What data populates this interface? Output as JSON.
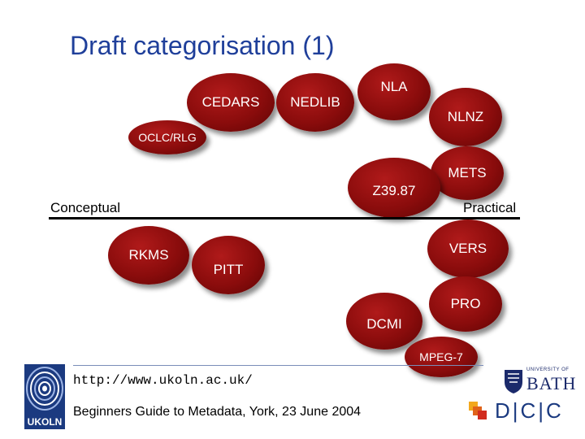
{
  "slide": {
    "title": "Draft categorisation (1)"
  },
  "bubbles": [
    {
      "name": "CEDARS"
    },
    {
      "name": "NEDLIB"
    },
    {
      "name": "NLA"
    },
    {
      "name": "NLNZ"
    },
    {
      "name": "OCLC/RLG"
    },
    {
      "name": "METS"
    },
    {
      "name": "Z39.87"
    },
    {
      "name": "RKMS"
    },
    {
      "name": "VERS"
    },
    {
      "name": "PITT"
    },
    {
      "name": "PRO"
    },
    {
      "name": "DCMI"
    },
    {
      "name": "MPEG-7"
    }
  ],
  "axis": {
    "left_label": "Conceptual",
    "right_label": "Practical"
  },
  "footer": {
    "url": "http://www.ukoln.ac.uk/",
    "event": "Beginners Guide to Metadata, York, 23 June 2004"
  },
  "logos": {
    "ukoln": "UKOLN",
    "bath_small": "UNIVERSITY OF",
    "bath": "BATH",
    "dcc": "D|C|C"
  },
  "colors": {
    "title": "#1f3f9a",
    "bubble": "#8a0c0c",
    "bubble_text": "#ffffff",
    "axis": "#000000"
  }
}
